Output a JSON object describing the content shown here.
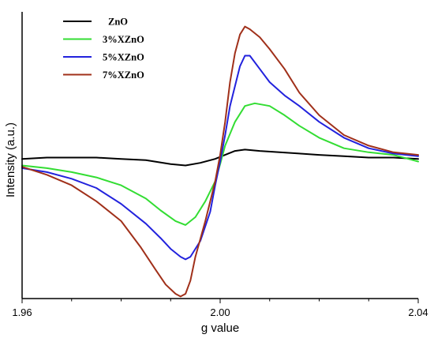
{
  "chart_data": {
    "type": "line",
    "title": "",
    "xlabel": "g value",
    "ylabel": "Intensity (a.u.)",
    "xlim": [
      1.96,
      2.04
    ],
    "ylim": [
      -1.0,
      1.0
    ],
    "x_ticks": [
      "1.96",
      "2.00",
      "2.04"
    ],
    "y_tick_labels_shown": false,
    "grid": false,
    "legend_position": "top-left",
    "series": [
      {
        "name": "ZnO",
        "color": "#000000",
        "x": [
          1.96,
          1.965,
          1.97,
          1.975,
          1.98,
          1.985,
          1.99,
          1.993,
          1.996,
          1.999,
          2.001,
          2.003,
          2.005,
          2.008,
          2.012,
          2.016,
          2.02,
          2.025,
          2.03,
          2.035,
          2.04
        ],
        "y": [
          0.02,
          0.03,
          0.03,
          0.03,
          0.02,
          0.01,
          -0.02,
          -0.03,
          -0.01,
          0.02,
          0.05,
          0.08,
          0.09,
          0.08,
          0.07,
          0.06,
          0.05,
          0.04,
          0.03,
          0.03,
          0.02
        ]
      },
      {
        "name": "3%XZnO",
        "color": "#33dd33",
        "x": [
          1.96,
          1.965,
          1.97,
          1.975,
          1.98,
          1.985,
          1.988,
          1.991,
          1.993,
          1.995,
          1.997,
          1.999,
          2.0,
          2.001,
          2.003,
          2.005,
          2.007,
          2.01,
          2.013,
          2.016,
          2.02,
          2.025,
          2.03,
          2.035,
          2.04
        ],
        "y": [
          -0.03,
          -0.05,
          -0.08,
          -0.12,
          -0.18,
          -0.28,
          -0.37,
          -0.45,
          -0.48,
          -0.42,
          -0.3,
          -0.15,
          -0.02,
          0.12,
          0.3,
          0.42,
          0.44,
          0.42,
          0.35,
          0.27,
          0.18,
          0.1,
          0.07,
          0.05,
          0.0
        ]
      },
      {
        "name": "5%XZnO",
        "color": "#2222dd",
        "x": [
          1.96,
          1.965,
          1.97,
          1.975,
          1.98,
          1.985,
          1.988,
          1.99,
          1.992,
          1.993,
          1.994,
          1.996,
          1.998,
          1.999,
          2.0,
          2.001,
          2.002,
          2.004,
          2.005,
          2.006,
          2.008,
          2.01,
          2.013,
          2.016,
          2.02,
          2.025,
          2.03,
          2.035,
          2.04
        ],
        "y": [
          -0.05,
          -0.08,
          -0.13,
          -0.2,
          -0.32,
          -0.47,
          -0.58,
          -0.66,
          -0.72,
          -0.74,
          -0.72,
          -0.6,
          -0.38,
          -0.18,
          0.0,
          0.2,
          0.42,
          0.72,
          0.8,
          0.8,
          0.7,
          0.6,
          0.5,
          0.42,
          0.3,
          0.18,
          0.1,
          0.06,
          0.04
        ]
      },
      {
        "name": "7%XZnO",
        "color": "#a0301a",
        "x": [
          1.96,
          1.965,
          1.97,
          1.975,
          1.98,
          1.984,
          1.987,
          1.989,
          1.991,
          1.992,
          1.993,
          1.994,
          1.995,
          1.997,
          1.999,
          2.0,
          2.001,
          2.002,
          2.003,
          2.004,
          2.005,
          2.006,
          2.008,
          2.01,
          2.013,
          2.016,
          2.02,
          2.025,
          2.03,
          2.035,
          2.04
        ],
        "y": [
          -0.04,
          -0.1,
          -0.18,
          -0.3,
          -0.45,
          -0.65,
          -0.82,
          -0.93,
          -1.0,
          -1.02,
          -1.0,
          -0.9,
          -0.72,
          -0.45,
          -0.15,
          0.05,
          0.3,
          0.6,
          0.82,
          0.96,
          1.02,
          1.0,
          0.94,
          0.85,
          0.7,
          0.52,
          0.35,
          0.2,
          0.12,
          0.07,
          0.05
        ]
      }
    ]
  }
}
